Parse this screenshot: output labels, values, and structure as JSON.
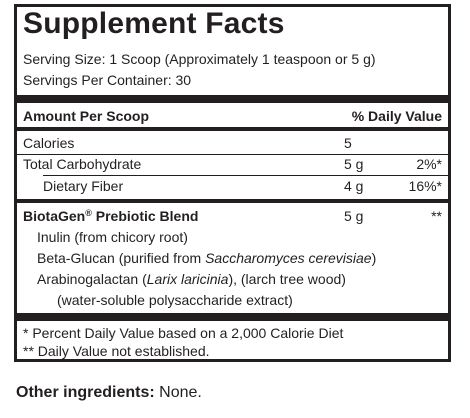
{
  "title": "Supplement Facts",
  "serving_size": "Serving Size: 1 Scoop (Approximately 1 teaspoon or 5 g)",
  "servings_per_container": "Servings Per Container: 30",
  "header": {
    "amount": "Amount Per Scoop",
    "dv": "% Daily Value"
  },
  "rows": [
    {
      "name": "Calories",
      "amount": "5",
      "dv": ""
    },
    {
      "name": "Total Carbohydrate",
      "amount": "5 g",
      "dv": "2%*"
    },
    {
      "name": "Dietary Fiber",
      "amount": "4 g",
      "dv": "16%*"
    }
  ],
  "blend": {
    "name": "BiotaGen",
    "reg": "®",
    "name_suffix": " Prebiotic Blend",
    "amount": "5 g",
    "dv": "**",
    "ingredients": {
      "inulin": "Inulin (from chicory root)",
      "beta_prefix": "Beta-Glucan (purified from ",
      "beta_species": "Saccharomyces cerevisiae",
      "beta_suffix": ")",
      "arabino_prefix": "Arabinogalactan (",
      "arabino_species": "Larix laricinia",
      "arabino_suffix": "), (larch tree wood)",
      "arabino_line2": "(water-soluble polysaccharide extract)"
    }
  },
  "footnotes": [
    "*  Percent Daily Value based on a 2,000 Calorie Diet",
    "** Daily Value not established."
  ],
  "other_ingredients": {
    "label": "Other ingredients:",
    "value": " None."
  }
}
